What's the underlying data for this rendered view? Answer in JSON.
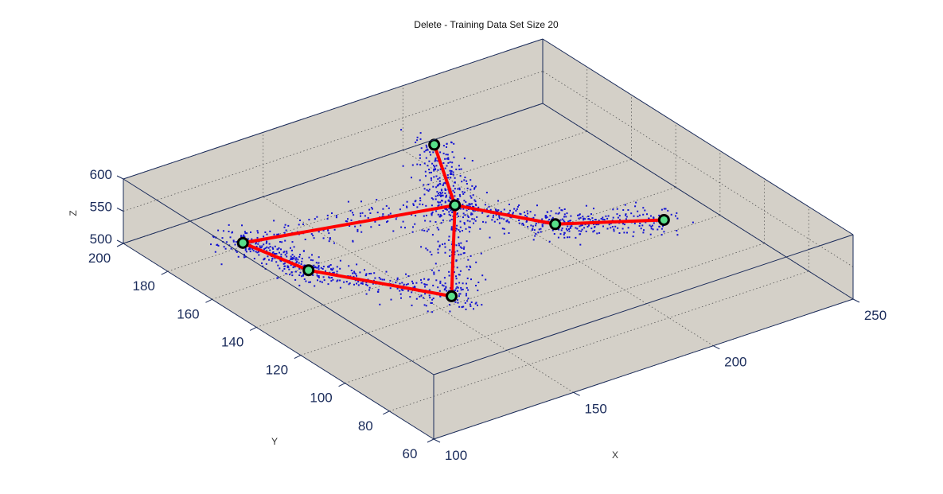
{
  "chart_data": {
    "type": "scatter",
    "title": "Delete - Training Data Set Size 20",
    "xlabel": "X",
    "ylabel": "Y",
    "zlabel": "Z",
    "xlim": [
      100,
      250
    ],
    "ylim": [
      60,
      200
    ],
    "zlim": [
      500,
      600
    ],
    "x_ticks": [
      "100",
      "150",
      "200",
      "250"
    ],
    "y_ticks": [
      "60",
      "80",
      "100",
      "120",
      "140",
      "160",
      "180",
      "200"
    ],
    "z_ticks": [
      "500",
      "550",
      "600"
    ],
    "grid": true,
    "box": true,
    "colors": {
      "background": "#d4d0c8",
      "box_edge": "#1a2b5a",
      "points": "#1414d2",
      "skeleton": "#ff0000",
      "joint_fill": "#58e08a",
      "joint_edge": "#000000"
    },
    "skeleton": {
      "joints": [
        {
          "name": "top",
          "x": 189,
          "y": 172,
          "z": 585
        },
        {
          "name": "center",
          "x": 175,
          "y": 145,
          "z": 570
        },
        {
          "name": "left_upper",
          "x": 115,
          "y": 165,
          "z": 555
        },
        {
          "name": "left_lower",
          "x": 125,
          "y": 148,
          "z": 535
        },
        {
          "name": "bottom",
          "x": 150,
          "y": 115,
          "z": 530
        },
        {
          "name": "right_mid",
          "x": 195,
          "y": 125,
          "z": 555
        },
        {
          "name": "right_end",
          "x": 222,
          "y": 110,
          "z": 555
        }
      ],
      "bones": [
        [
          0,
          1
        ],
        [
          1,
          4
        ],
        [
          4,
          3
        ],
        [
          3,
          2
        ],
        [
          2,
          1
        ],
        [
          1,
          5
        ],
        [
          5,
          6
        ]
      ]
    },
    "point_cloud": {
      "description_free": true,
      "point_count": 1400
    }
  }
}
